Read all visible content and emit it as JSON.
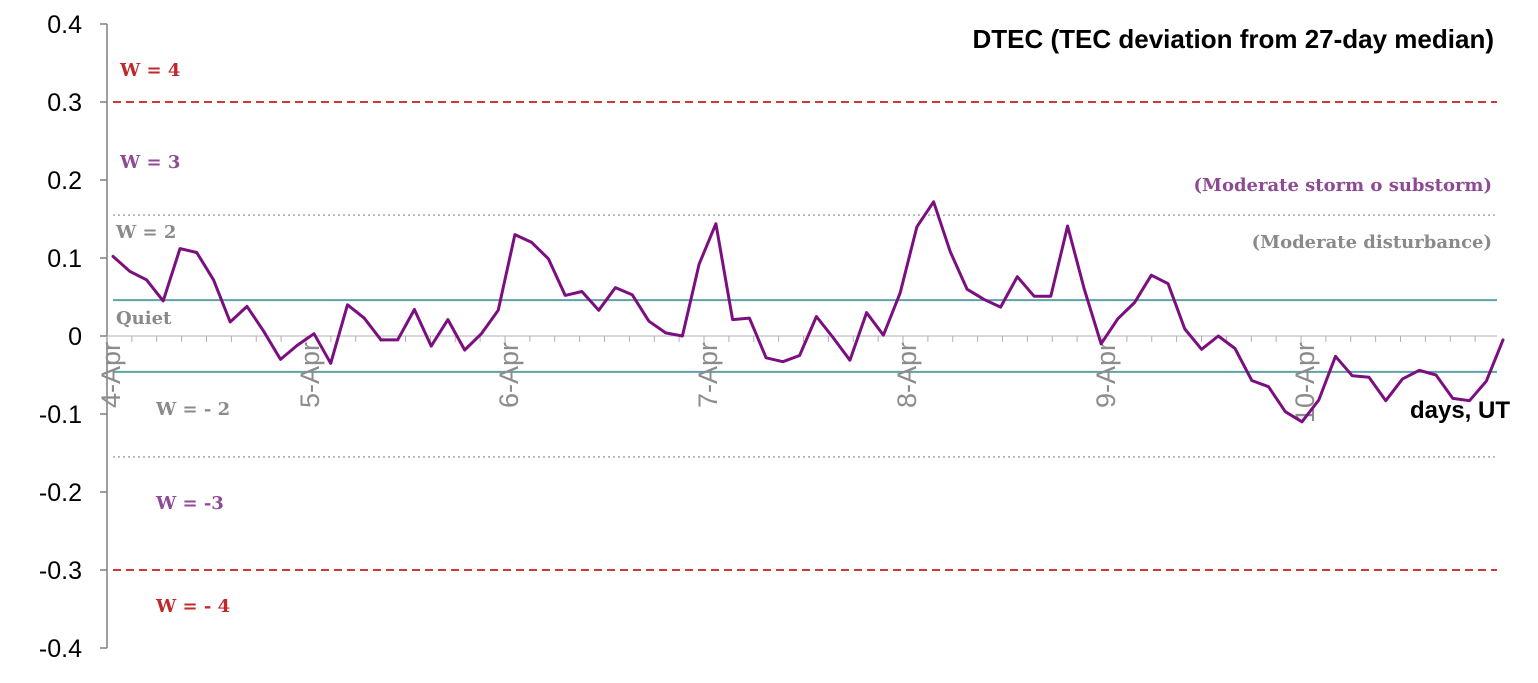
{
  "chart_data": {
    "type": "line",
    "title": "DTEC (TEC deviation from 27-day median)",
    "xlabel": "days, UT",
    "ylabel": "",
    "ylim": [
      -0.4,
      0.4
    ],
    "yticks": [
      "0.4",
      "0.3",
      "0.2",
      "0.1",
      "0",
      "-0.1",
      "-0.2",
      "-0.3",
      "-0.4"
    ],
    "ytick_values": [
      0.4,
      0.3,
      0.2,
      0.1,
      0,
      -0.1,
      -0.2,
      -0.3,
      -0.4
    ],
    "day_labels": [
      "4-Apr",
      "5-Apr",
      "6-Apr",
      "7-Apr",
      "8-Apr",
      "9-Apr",
      "10-Apr"
    ],
    "x_unit": "hours since 4-Apr 00 UT, 3-hourly samples",
    "grid": false,
    "line_color": "#7b0f7f",
    "series": [
      {
        "name": "",
        "values": [
          0.102,
          0.083,
          0.072,
          0.045,
          0.112,
          0.107,
          0.072,
          0.018,
          0.038,
          0.006,
          -0.03,
          -0.012,
          0.003,
          -0.035,
          0.04,
          0.023,
          -0.005,
          -0.005,
          0.034,
          -0.013,
          0.021,
          -0.018,
          0.003,
          0.033,
          0.13,
          0.12,
          0.099,
          0.052,
          0.057,
          0.033,
          0.062,
          0.053,
          0.019,
          0.004,
          0.0,
          0.092,
          0.144,
          0.021,
          0.023,
          -0.028,
          -0.033,
          -0.025,
          0.025,
          -0.002,
          -0.031,
          0.03,
          0.001,
          0.055,
          0.14,
          0.172,
          0.108,
          0.06,
          0.047,
          0.037,
          0.076,
          0.051,
          0.051,
          0.141,
          0.06,
          -0.01,
          0.022,
          0.043,
          0.078,
          0.067,
          0.009,
          -0.017,
          0.0,
          -0.016,
          -0.057,
          -0.065,
          -0.097,
          -0.11,
          -0.082,
          -0.026,
          -0.051,
          -0.053,
          -0.083,
          -0.055,
          -0.044,
          -0.05,
          -0.08,
          -0.083,
          -0.058,
          -0.005
        ]
      }
    ],
    "reference_lines": [
      {
        "value": 0.3,
        "style": "dashed",
        "color": "#d0383a",
        "label": "W = 4",
        "label_color": "#c0282a"
      },
      {
        "value": 0.155,
        "style": "dotted",
        "color": "#a9a9a9",
        "label": "W = 2",
        "label_color": "#8a8a8a"
      },
      {
        "value": 0.046,
        "style": "solid",
        "color": "#5da3a8",
        "label": "Quiet",
        "label_color": "#8a8a8a"
      },
      {
        "value": -0.046,
        "style": "solid",
        "color": "#5da3a8",
        "label": "W = - 2",
        "label_color": "#8a8a8a"
      },
      {
        "value": -0.155,
        "style": "dotted",
        "color": "#a9a9a9",
        "label": "W = -3",
        "label_color": "#8e4a94"
      },
      {
        "value": -0.3,
        "style": "dashed",
        "color": "#d0383a",
        "label": "W = - 4",
        "label_color": "#c0282a"
      }
    ],
    "annotations": [
      {
        "text": "W = 3",
        "color": "#8e4a94",
        "y": 0.225
      },
      {
        "text": "(Moderate storm o substorm)",
        "color": "#8e4a94",
        "y": 0.19
      },
      {
        "text": "(Moderate disturbance)",
        "color": "#8a8a8a",
        "y": 0.118
      }
    ]
  }
}
